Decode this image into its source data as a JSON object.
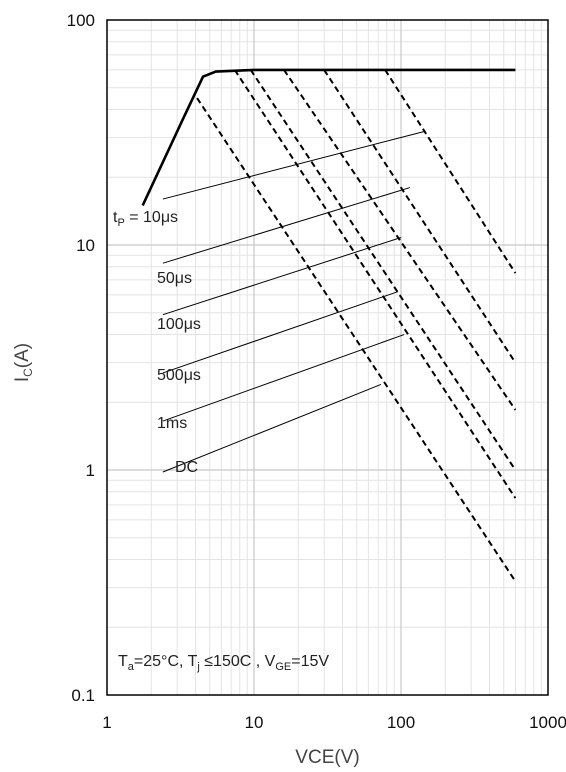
{
  "chart_data": {
    "type": "line",
    "title": "",
    "xlabel": "VCE(V)",
    "ylabel": {
      "main": "I",
      "sub": "C",
      "unit": "(A)"
    },
    "xscale": "log",
    "yscale": "log",
    "xlim": [
      1,
      1000
    ],
    "ylim": [
      0.1,
      100
    ],
    "grid": true,
    "x_ticks": [
      {
        "value": 1,
        "label": "1"
      },
      {
        "value": 10,
        "label": "10"
      },
      {
        "value": 100,
        "label": "100"
      },
      {
        "value": 1000,
        "label": "1000"
      }
    ],
    "y_ticks": [
      {
        "value": 0.1,
        "label": "0.1"
      },
      {
        "value": 1,
        "label": "1"
      },
      {
        "value": 10,
        "label": "10"
      },
      {
        "value": 100,
        "label": "100"
      }
    ],
    "boundary": {
      "style": "solid",
      "points": [
        {
          "x": 1.75,
          "y": 15
        },
        {
          "x": 3.2,
          "y": 35
        },
        {
          "x": 4.5,
          "y": 56
        },
        {
          "x": 5.5,
          "y": 59
        },
        {
          "x": 10,
          "y": 60
        },
        {
          "x": 100,
          "y": 60
        },
        {
          "x": 600,
          "y": 60
        }
      ]
    },
    "series": [
      {
        "x": [
          4.1,
          600
        ],
        "y": [
          45,
          0.32
        ]
      },
      {
        "x": [
          7.4,
          600
        ],
        "y": [
          60,
          0.75
        ]
      },
      {
        "x": [
          9.5,
          600
        ],
        "y": [
          60,
          1.0
        ]
      },
      {
        "x": [
          16,
          600
        ],
        "y": [
          60,
          1.85
        ]
      },
      {
        "x": [
          30,
          600
        ],
        "y": [
          60,
          3.0
        ]
      },
      {
        "x": [
          78,
          600
        ],
        "y": [
          60,
          7.5
        ]
      }
    ],
    "annotations": [
      {
        "label": {
          "main": "t",
          "sub": "P",
          "rest": " = 10μs"
        },
        "from": {
          "x": 2.4,
          "y": 16
        },
        "to": {
          "x": 145,
          "y": 32
        }
      },
      {
        "label": {
          "main": "50μs"
        },
        "from": {
          "x": 2.4,
          "y": 8.3
        },
        "to": {
          "x": 115,
          "y": 18
        }
      },
      {
        "label": {
          "main": "100μs"
        },
        "from": {
          "x": 2.4,
          "y": 4.9
        },
        "to": {
          "x": 100,
          "y": 10.8
        }
      },
      {
        "label": {
          "main": "500μs"
        },
        "from": {
          "x": 2.4,
          "y": 2.7
        },
        "to": {
          "x": 95,
          "y": 6.2
        }
      },
      {
        "label": {
          "main": "1ms"
        },
        "from": {
          "x": 2.4,
          "y": 1.65
        },
        "to": {
          "x": 105,
          "y": 4.0
        }
      },
      {
        "label": {
          "main": "DC"
        },
        "from": {
          "x": 2.4,
          "y": 0.98
        },
        "to": {
          "x": 73,
          "y": 2.4
        }
      }
    ],
    "conditions": "T_a=25°C, T_j ≤150C , V_GE=15V"
  }
}
